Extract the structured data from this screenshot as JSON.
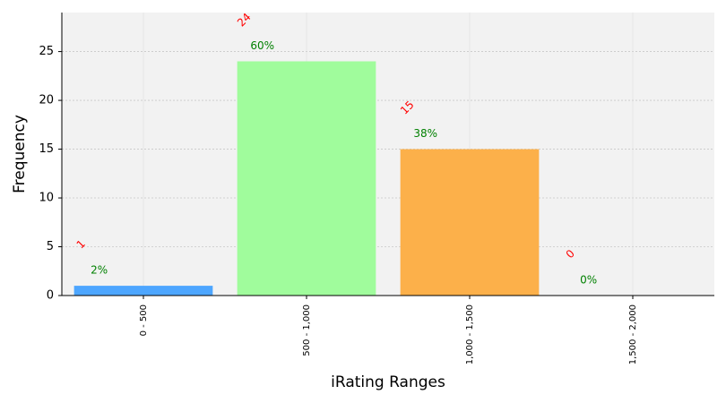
{
  "chart_data": {
    "type": "bar",
    "x_label": "iRating Ranges",
    "y_label": "Frequency",
    "categories": [
      "0 - 500",
      "500 - 1,000",
      "1,000 - 1,500",
      "1,500 - 2,000"
    ],
    "values": [
      1,
      24,
      15,
      0
    ],
    "percent_labels": [
      "2%",
      "60%",
      "38%",
      "0%"
    ],
    "colors": [
      "#4da6ff",
      "#a0fc9c",
      "#fcb04a",
      "#ff9999"
    ],
    "ylim": [
      0,
      29
    ],
    "yticks": [
      0,
      5,
      10,
      15,
      20,
      25
    ],
    "grid": true
  }
}
